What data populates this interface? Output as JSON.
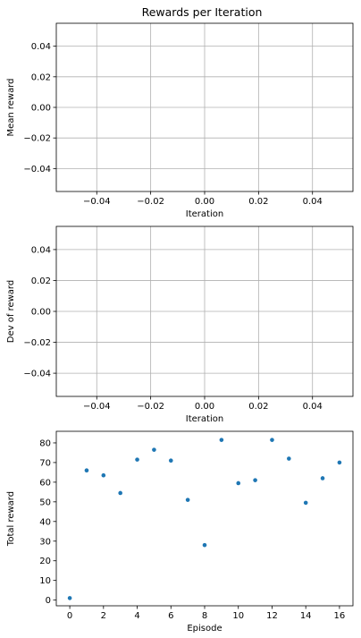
{
  "figure": {
    "title": "Rewards per Iteration"
  },
  "chart_data": [
    {
      "type": "scatter",
      "title": "Rewards per Iteration",
      "xlabel": "Iteration",
      "ylabel": "Mean reward",
      "xlim": [
        -0.055,
        0.055
      ],
      "ylim": [
        -0.055,
        0.055
      ],
      "xticks": [
        -0.04,
        -0.02,
        0.0,
        0.02,
        0.04
      ],
      "xtick_labels": [
        "−0.04",
        "−0.02",
        "0.00",
        "0.02",
        "0.04"
      ],
      "yticks": [
        0.04,
        0.02,
        0.0,
        -0.02,
        -0.04
      ],
      "ytick_labels": [
        "0.04",
        "0.02",
        "0.00",
        "−0.02",
        "−0.04"
      ],
      "grid": true,
      "x": [],
      "y": []
    },
    {
      "type": "scatter",
      "title": "",
      "xlabel": "Iteration",
      "ylabel": "Dev of reward",
      "xlim": [
        -0.055,
        0.055
      ],
      "ylim": [
        -0.055,
        0.055
      ],
      "xticks": [
        -0.04,
        -0.02,
        0.0,
        0.02,
        0.04
      ],
      "xtick_labels": [
        "−0.04",
        "−0.02",
        "0.00",
        "0.02",
        "0.04"
      ],
      "yticks": [
        0.04,
        0.02,
        0.0,
        -0.02,
        -0.04
      ],
      "ytick_labels": [
        "0.04",
        "0.02",
        "0.00",
        "−0.02",
        "−0.04"
      ],
      "grid": true,
      "x": [],
      "y": []
    },
    {
      "type": "scatter",
      "title": "",
      "xlabel": "Episode",
      "ylabel": "Total reward",
      "xlim": [
        -0.8,
        16.8
      ],
      "ylim": [
        -2.9,
        85.9
      ],
      "xticks": [
        0,
        2,
        4,
        6,
        8,
        10,
        12,
        14,
        16
      ],
      "xtick_labels": [
        "0",
        "2",
        "4",
        "6",
        "8",
        "10",
        "12",
        "14",
        "16"
      ],
      "yticks": [
        0,
        10,
        20,
        30,
        40,
        50,
        60,
        70,
        80
      ],
      "ytick_labels": [
        "0",
        "10",
        "20",
        "30",
        "40",
        "50",
        "60",
        "70",
        "80"
      ],
      "grid": false,
      "marker_color": "#1f77b4",
      "x": [
        0,
        1,
        2,
        3,
        4,
        5,
        6,
        7,
        8,
        9,
        10,
        11,
        12,
        13,
        14,
        15,
        16
      ],
      "y": [
        1,
        66,
        63.5,
        54.5,
        71.5,
        76.5,
        71,
        51,
        28,
        81.5,
        59.5,
        61,
        81.5,
        72,
        49.5,
        62,
        70
      ]
    }
  ]
}
